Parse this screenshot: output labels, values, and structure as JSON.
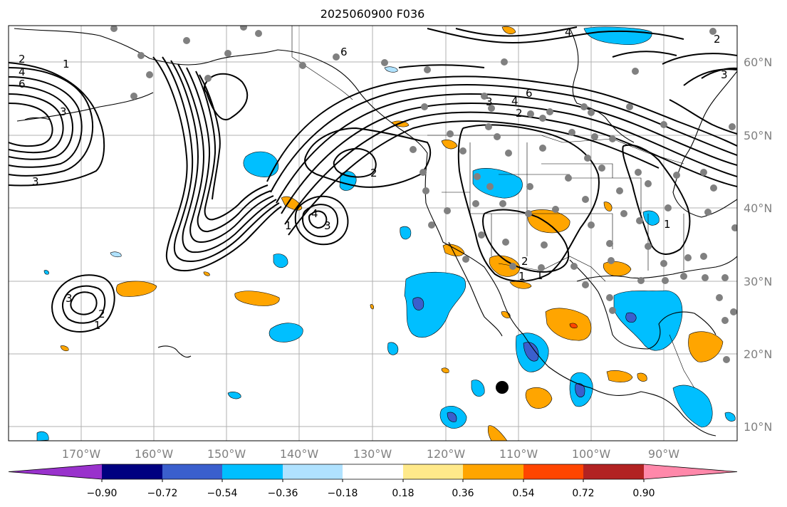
{
  "title": "2025060900 F036",
  "map": {
    "lat_labels": [
      "60°N",
      "50°N",
      "40°N",
      "30°N",
      "20°N",
      "10°N"
    ],
    "lon_labels": [
      "170°W",
      "160°W",
      "150°W",
      "140°W",
      "130°W",
      "120°W",
      "110°W",
      "100°W",
      "90°W"
    ]
  },
  "colorbar": {
    "tick_labels": [
      "−0.90",
      "−0.72",
      "−0.54",
      "−0.36",
      "−0.18",
      "0.18",
      "0.36",
      "0.54",
      "0.72",
      "0.90"
    ],
    "colors": [
      "#9932cc",
      "#000080",
      "#3a5fcd",
      "#00bfff",
      "#b0e2ff",
      "#ffffff",
      "#ffe98a",
      "#ffa500",
      "#ff4500",
      "#b22222",
      "#ff88aa"
    ]
  },
  "contour_labels": [
    "2",
    "4",
    "6",
    "1",
    "3",
    "6",
    "4",
    "3",
    "2",
    "6",
    "4",
    "3",
    "2",
    "1",
    "1",
    "3",
    "4",
    "1",
    "2",
    "3",
    "1",
    "2",
    "3",
    "2",
    "1"
  ]
}
